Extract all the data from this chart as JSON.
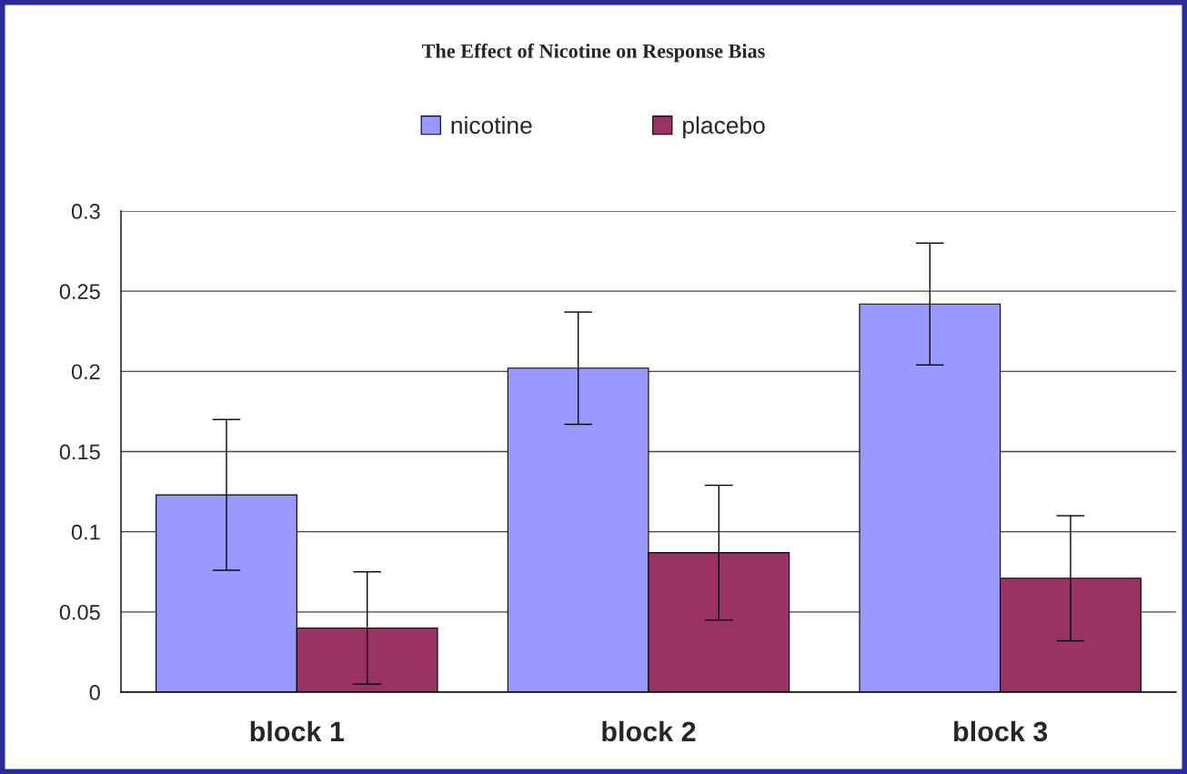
{
  "chart_data": {
    "type": "bar",
    "title": "The Effect of Nicotine on Response Bias",
    "categories": [
      "block 1",
      "block 2",
      "block 3"
    ],
    "series": [
      {
        "name": "nicotine",
        "color": "#9999ff",
        "values": [
          0.123,
          0.202,
          0.242
        ],
        "errors": [
          0.047,
          0.035,
          0.038
        ]
      },
      {
        "name": "placebo",
        "color": "#993366",
        "values": [
          0.04,
          0.087,
          0.071
        ],
        "errors": [
          0.035,
          0.042,
          0.039
        ]
      }
    ],
    "ylim": [
      0,
      0.3
    ],
    "yticks": [
      0,
      0.05,
      0.1,
      0.15,
      0.2,
      0.25,
      0.3
    ],
    "grid": "y",
    "legend": "top"
  }
}
